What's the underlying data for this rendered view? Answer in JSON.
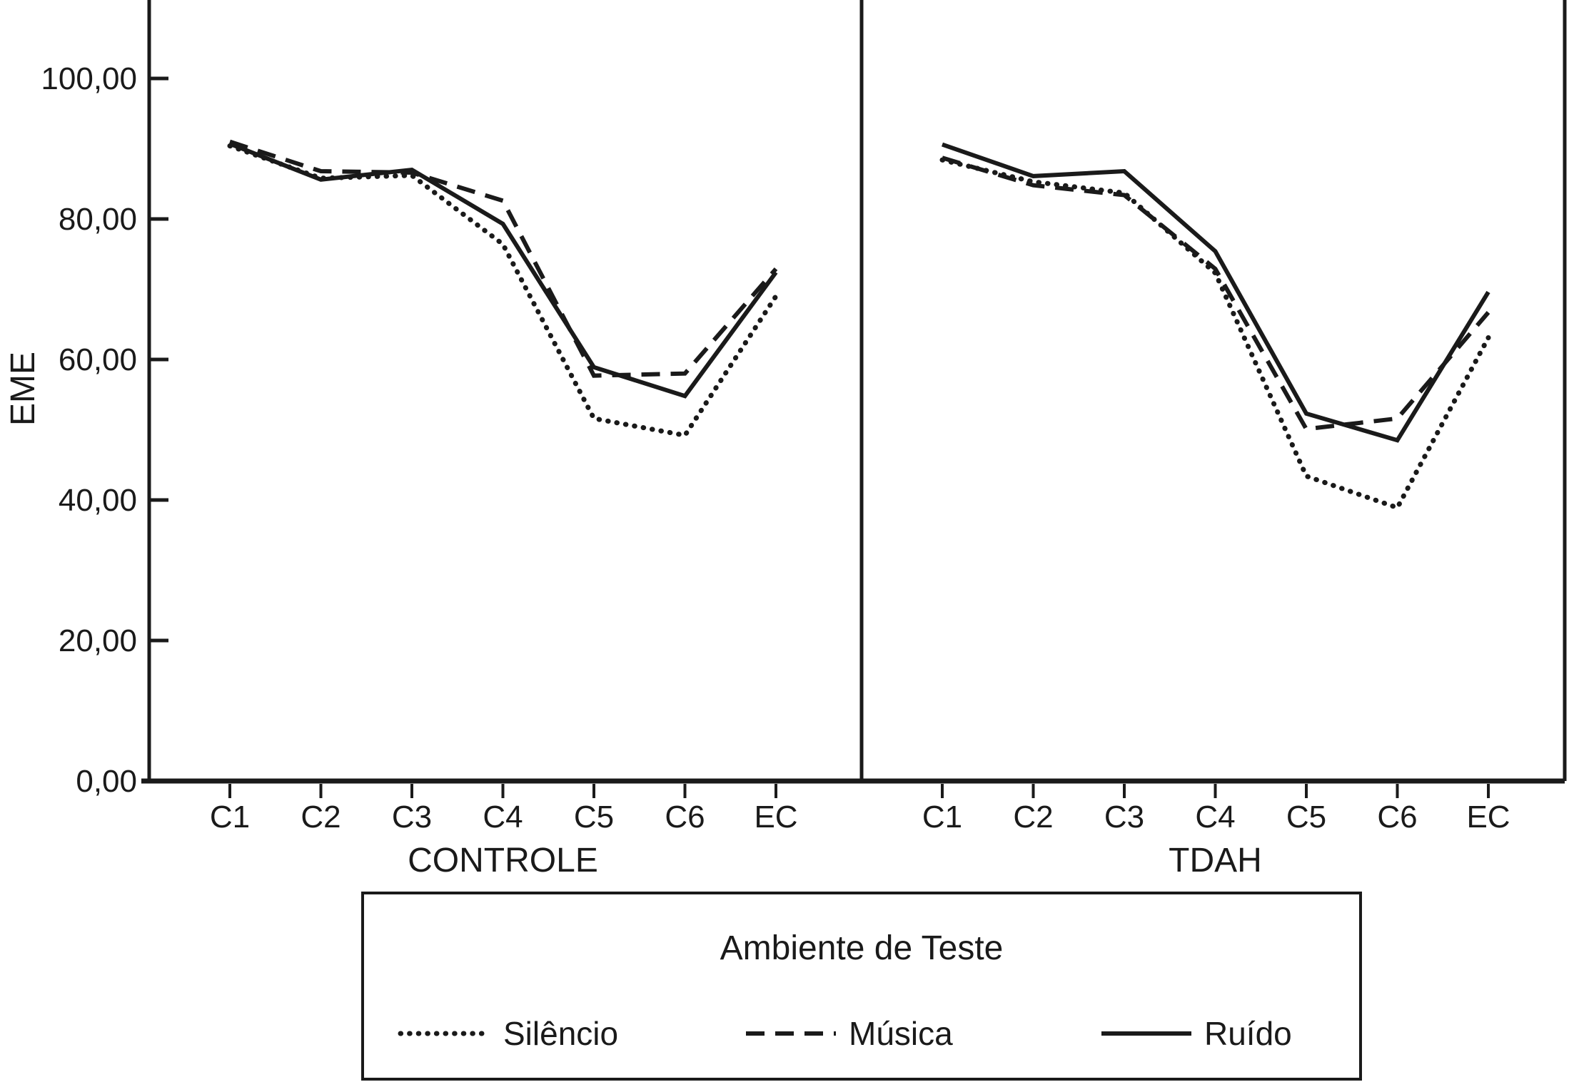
{
  "figure": {
    "y_axis_title": "EME",
    "y_ticks": {
      "values": [
        0,
        20,
        40,
        60,
        80,
        100
      ],
      "labels": [
        "0,00",
        "20,00",
        "40,00",
        "60,00",
        "80,00",
        "100,00"
      ]
    },
    "background": "#ffffff",
    "line_color": "#1a1a1a"
  },
  "legend": {
    "title": "Ambiente de Teste",
    "entries": [
      {
        "label": "Silêncio",
        "style": "dotted"
      },
      {
        "label": "Música",
        "style": "dashed"
      },
      {
        "label": "Ruído",
        "style": "solid"
      }
    ]
  },
  "chart_data": [
    {
      "type": "line",
      "panel": "CONTROLE",
      "xlabel": "CONTROLE",
      "ylabel": "EME",
      "ylim": [
        0,
        111
      ],
      "grid": false,
      "legend_position": "bottom",
      "categories": [
        "C1",
        "C2",
        "C3",
        "C4",
        "C5",
        "C6",
        "EC"
      ],
      "series": [
        {
          "name": "Silêncio",
          "style": "dotted",
          "values": [
            90.4,
            85.8,
            86.2,
            76.4,
            51.6,
            49.2,
            69.0
          ]
        },
        {
          "name": "Música",
          "style": "dashed",
          "values": [
            91.0,
            86.8,
            86.6,
            82.6,
            57.7,
            58.0,
            72.9
          ]
        },
        {
          "name": "Ruído",
          "style": "solid",
          "values": [
            90.7,
            85.6,
            87.0,
            79.3,
            58.9,
            54.8,
            72.4
          ]
        }
      ]
    },
    {
      "type": "line",
      "panel": "TDAH",
      "xlabel": "TDAH",
      "ylabel": "EME",
      "ylim": [
        0,
        111
      ],
      "grid": false,
      "legend_position": "bottom",
      "categories": [
        "C1",
        "C2",
        "C3",
        "C4",
        "C5",
        "C6",
        "EC"
      ],
      "series": [
        {
          "name": "Silêncio",
          "style": "dotted",
          "values": [
            88.4,
            85.3,
            83.7,
            72.3,
            43.4,
            38.9,
            63.1
          ]
        },
        {
          "name": "Música",
          "style": "dashed",
          "values": [
            88.7,
            84.8,
            83.4,
            72.9,
            50.1,
            51.6,
            66.7
          ]
        },
        {
          "name": "Ruído",
          "style": "solid",
          "values": [
            90.6,
            86.1,
            86.8,
            75.4,
            52.3,
            48.5,
            69.6
          ]
        }
      ]
    }
  ]
}
